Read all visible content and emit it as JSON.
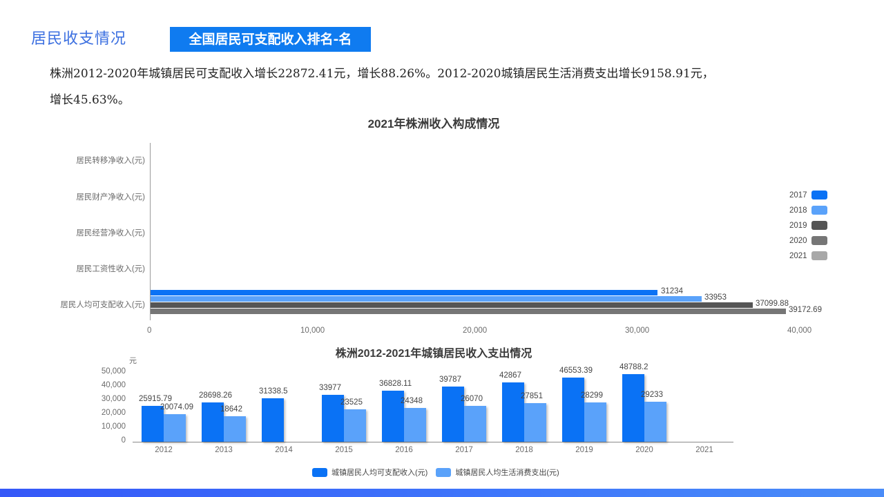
{
  "header": {
    "section_title": "居民收支情况",
    "tag_label": "全国居民可支配收入排名-名"
  },
  "summary": {
    "line1": "株洲2012-2020年城镇居民可支配收入增长22872.41元，增长88.26%。2012-2020城镇居民生活消费支出增长9158.91元，",
    "line2": "增长45.63%。"
  },
  "colors": {
    "primary_blue": "#0a72f5",
    "light_blue": "#5aa2fa",
    "dark_gray": "#555555",
    "mid_gray": "#767676",
    "light_gray": "#a8a8a8",
    "tag_bg": "#0f7bf0",
    "title_blue": "#3b6fe0",
    "footer_bar": "#3f78fb"
  },
  "chart_data": [
    {
      "type": "bar",
      "orientation": "horizontal",
      "title": "2021年株洲收入构成情况",
      "categories": [
        "居民人均可支配收入(元)",
        "居民工资性收入(元)",
        "居民经营净收入(元)",
        "居民财产净收入(元)",
        "居民转移净收入(元)"
      ],
      "series": [
        {
          "name": "2017",
          "color": "#0a72f5",
          "values": [
            31234,
            null,
            null,
            null,
            null
          ]
        },
        {
          "name": "2018",
          "color": "#5aa2fa",
          "values": [
            33953,
            null,
            null,
            null,
            null
          ]
        },
        {
          "name": "2019",
          "color": "#555555",
          "values": [
            37099.88,
            null,
            null,
            null,
            null
          ]
        },
        {
          "name": "2020",
          "color": "#767676",
          "values": [
            39172.69,
            null,
            null,
            null,
            null
          ]
        },
        {
          "name": "2021",
          "color": "#a8a8a8",
          "values": [
            null,
            null,
            null,
            null,
            null
          ]
        }
      ],
      "data_labels": [
        "31234",
        "33953",
        "37099.88",
        "39172.69"
      ],
      "x_ticks": [
        "0",
        "10,000",
        "20,000",
        "30,000",
        "40,000"
      ],
      "xlim": [
        0,
        40000
      ],
      "legend_position": "right",
      "grid": false
    },
    {
      "type": "bar",
      "orientation": "vertical",
      "title": "株洲2012-2021年城镇居民收入支出情况",
      "ylabel": "元",
      "categories": [
        "2012",
        "2013",
        "2014",
        "2015",
        "2016",
        "2017",
        "2018",
        "2019",
        "2020",
        "2021"
      ],
      "series": [
        {
          "name": "城镇居民人均可支配收入(元)",
          "color": "#0a72f5",
          "values": [
            25915.79,
            28698.26,
            31338.5,
            33977,
            36828.11,
            39787,
            42867,
            46553.39,
            48788.2,
            null
          ],
          "labels": [
            "25915.79",
            "28698.26",
            "31338.5",
            "33977",
            "36828.11",
            "39787",
            "42867",
            "46553.39",
            "48788.2",
            ""
          ]
        },
        {
          "name": "城镇居民人均生活消费支出(元)",
          "color": "#5aa2fa",
          "values": [
            20074.09,
            18642,
            null,
            23525,
            24348,
            26070,
            27851,
            28299,
            29233,
            null
          ],
          "labels": [
            "20074.09",
            "18642",
            "",
            "23525",
            "24348",
            "26070",
            "27851",
            "28299",
            "29233",
            ""
          ]
        }
      ],
      "y_ticks": [
        "0",
        "10,000",
        "20,000",
        "30,000",
        "40,000",
        "50,000"
      ],
      "ylim": [
        0,
        50000
      ],
      "legend_position": "bottom",
      "grid": false
    }
  ]
}
